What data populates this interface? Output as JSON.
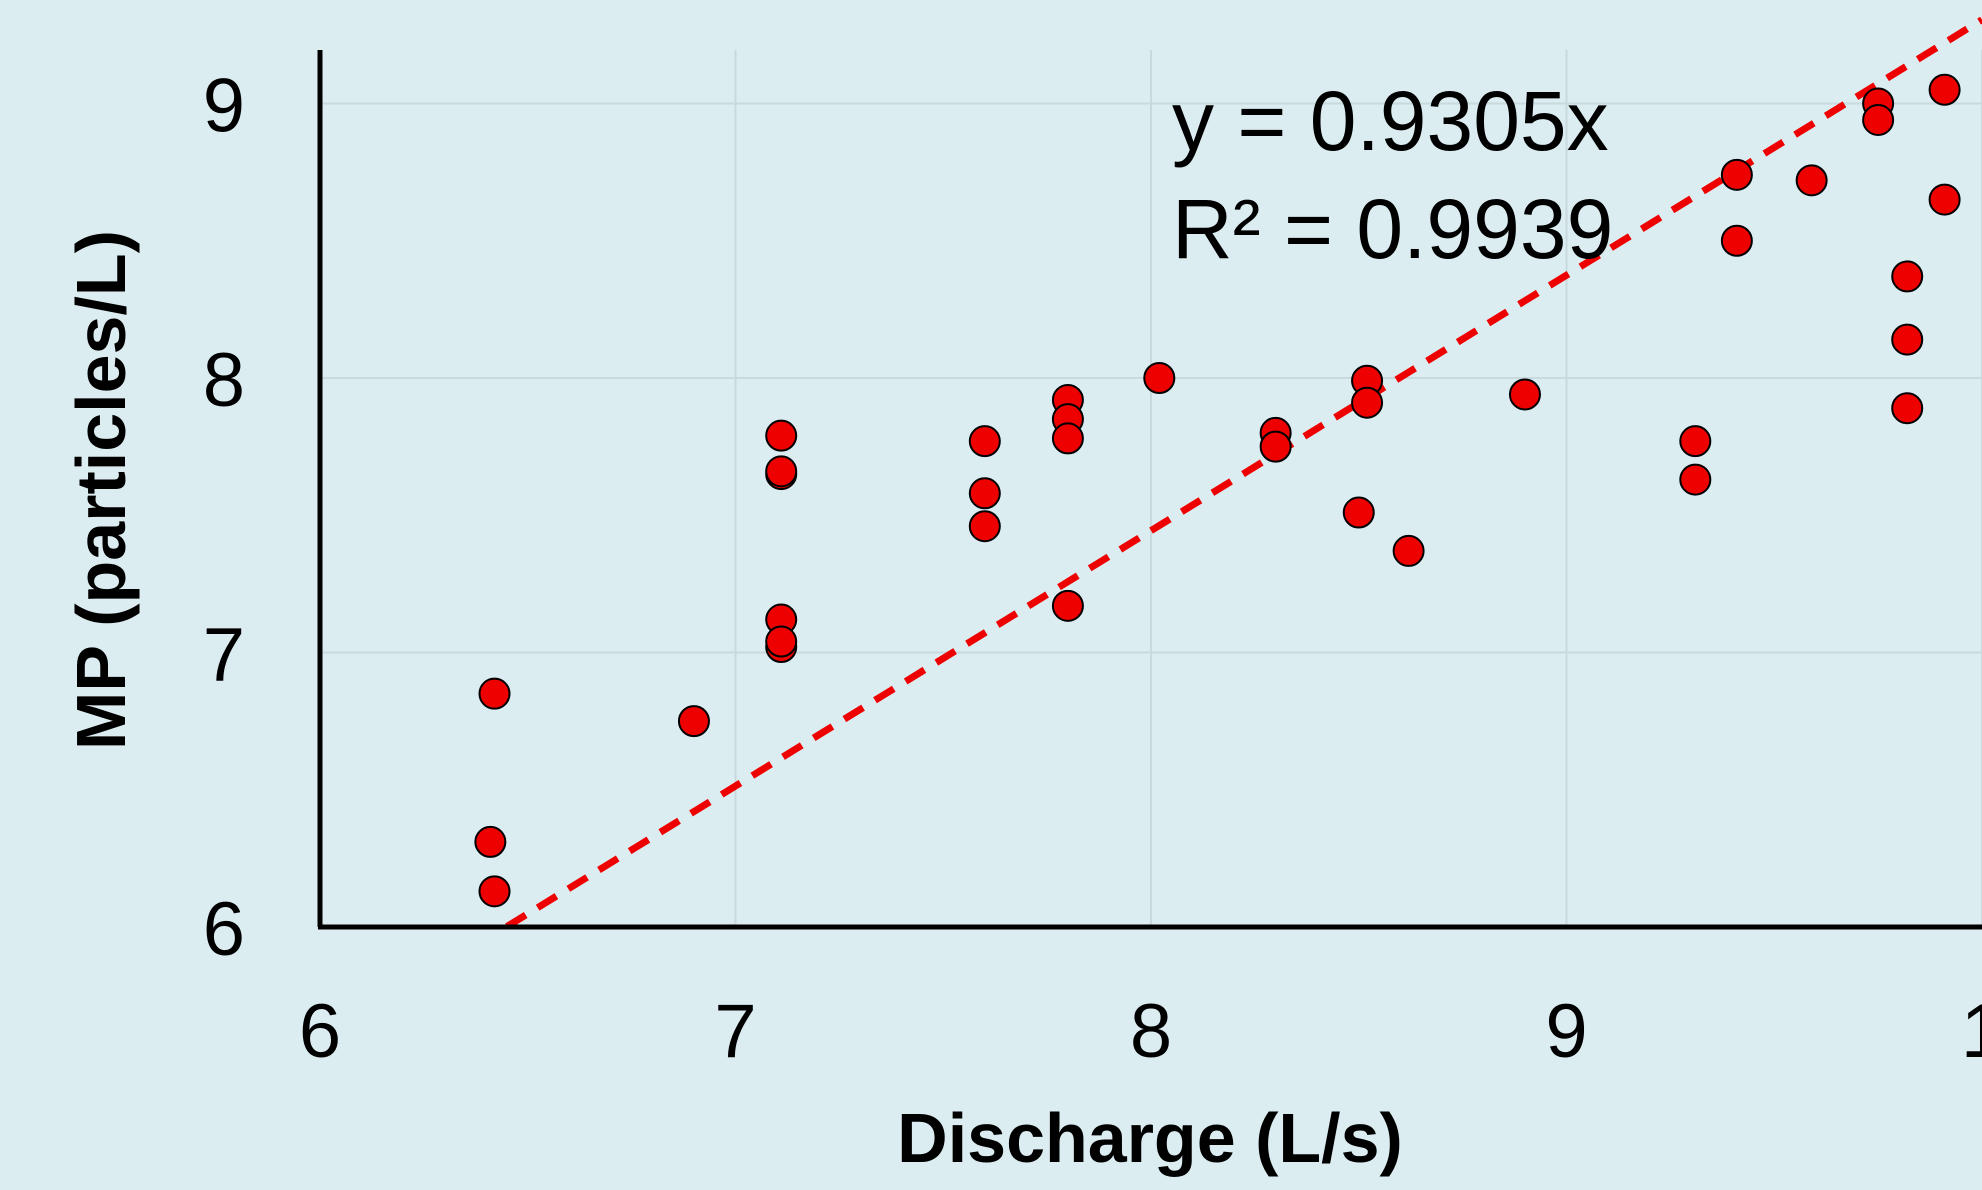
{
  "chart_data": {
    "type": "scatter",
    "xlabel": "Discharge (L/s)",
    "ylabel": "MP (particles/L)",
    "xlim": [
      6,
      10
    ],
    "ylim": [
      6,
      9.2
    ],
    "x_ticks": [
      "6",
      "7",
      "8",
      "9",
      "1"
    ],
    "y_ticks": [
      "6",
      "7",
      "8",
      "9"
    ],
    "grid": true,
    "series": [
      {
        "color": "#ee0000",
        "points": [
          {
            "x": 6.42,
            "y": 6.85
          },
          {
            "x": 6.41,
            "y": 6.31
          },
          {
            "x": 6.42,
            "y": 6.13
          },
          {
            "x": 6.9,
            "y": 6.75
          },
          {
            "x": 7.11,
            "y": 7.79
          },
          {
            "x": 7.11,
            "y": 7.65
          },
          {
            "x": 7.11,
            "y": 7.66
          },
          {
            "x": 7.11,
            "y": 7.12
          },
          {
            "x": 7.11,
            "y": 7.02
          },
          {
            "x": 7.11,
            "y": 7.04
          },
          {
            "x": 7.6,
            "y": 7.77
          },
          {
            "x": 7.6,
            "y": 7.58
          },
          {
            "x": 7.6,
            "y": 7.46
          },
          {
            "x": 7.8,
            "y": 7.92
          },
          {
            "x": 7.8,
            "y": 7.85
          },
          {
            "x": 7.8,
            "y": 7.78
          },
          {
            "x": 7.8,
            "y": 7.17
          },
          {
            "x": 8.02,
            "y": 8.0
          },
          {
            "x": 8.3,
            "y": 7.8
          },
          {
            "x": 8.3,
            "y": 7.75
          },
          {
            "x": 8.5,
            "y": 7.51
          },
          {
            "x": 8.52,
            "y": 7.99
          },
          {
            "x": 8.52,
            "y": 7.91
          },
          {
            "x": 8.62,
            "y": 7.37
          },
          {
            "x": 8.9,
            "y": 7.94
          },
          {
            "x": 9.31,
            "y": 7.77
          },
          {
            "x": 9.31,
            "y": 7.63
          },
          {
            "x": 9.41,
            "y": 8.74
          },
          {
            "x": 9.41,
            "y": 8.5
          },
          {
            "x": 9.59,
            "y": 8.72
          },
          {
            "x": 9.75,
            "y": 9.0
          },
          {
            "x": 9.75,
            "y": 8.94
          },
          {
            "x": 9.82,
            "y": 8.37
          },
          {
            "x": 9.82,
            "y": 8.14
          },
          {
            "x": 9.82,
            "y": 7.89
          },
          {
            "x": 9.91,
            "y": 9.05
          },
          {
            "x": 9.91,
            "y": 8.65
          }
        ]
      }
    ],
    "trendline": {
      "color": "#ee0000",
      "style": "dashed",
      "slope": 0.9305,
      "intercept": 0,
      "x_range": [
        6.45,
        10
      ],
      "equation": "y = 0.9305x",
      "r2": "R² = 0.9939"
    }
  }
}
